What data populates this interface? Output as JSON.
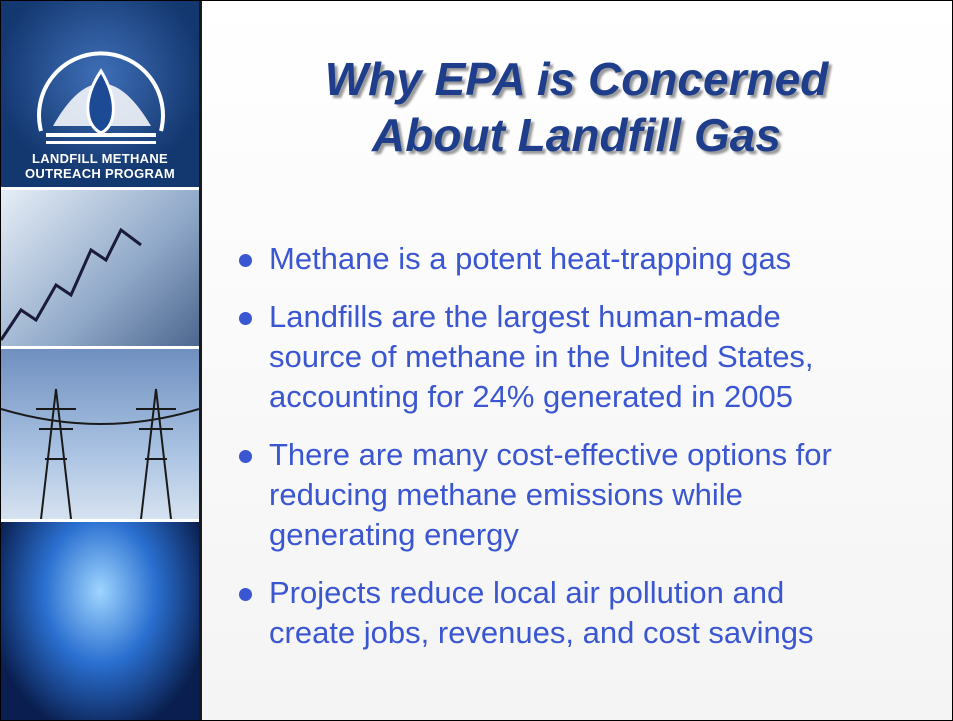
{
  "slide": {
    "title": [
      "Why EPA is Concerned",
      "About Landfill Gas"
    ],
    "logo": [
      "LANDFILL METHANE",
      "OUTREACH PROGRAM"
    ],
    "bullets": [
      [
        "Methane is a potent heat-trapping gas"
      ],
      [
        "Landfills are the largest human-made",
        "source of methane in the United States,",
        "accounting for 24% generated in 2005"
      ],
      [
        "There are many cost-effective options for",
        "reducing methane emissions while",
        "generating energy"
      ],
      [
        "Projects reduce local air pollution and",
        "create jobs, revenues, and cost savings"
      ]
    ]
  }
}
